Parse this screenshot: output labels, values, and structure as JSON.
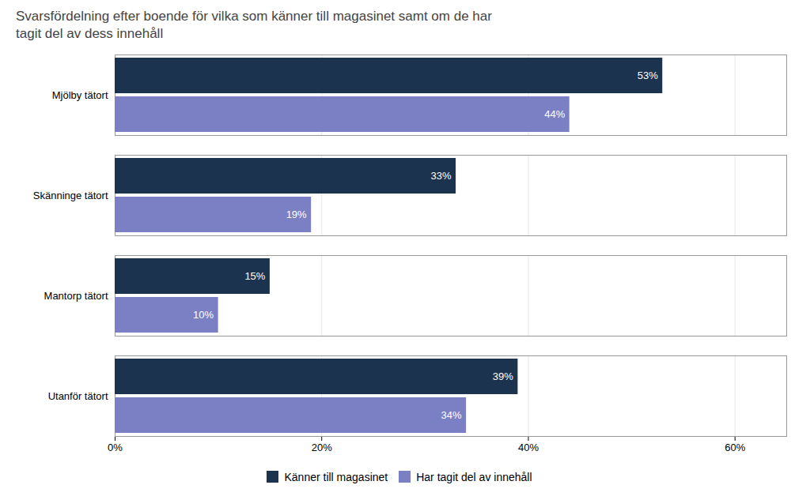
{
  "chart_data": {
    "type": "bar",
    "orientation": "horizontal",
    "title": "Svarsfördelning efter boende för vilka som känner till magasinet samt om de har\ntagit del av dess innehåll",
    "categories": [
      "Utanför tätort",
      "Mantorp tätort",
      "Skänninge tätort",
      "Mjölby tätort"
    ],
    "series": [
      {
        "name": "Känner till magasinet",
        "color": "#1c3350",
        "values": [
          39,
          15,
          33,
          53
        ],
        "value_labels": [
          "39%",
          "15%",
          "33%",
          "53%"
        ]
      },
      {
        "name": "Har tagit del av innehåll",
        "color": "#7b7fc4",
        "values": [
          34,
          10,
          19,
          44
        ],
        "value_labels": [
          "34%",
          "10%",
          "19%",
          "44%"
        ]
      }
    ],
    "xlim": [
      0,
      65
    ],
    "xticks": [
      {
        "value": 0,
        "label": "0%"
      },
      {
        "value": 20,
        "label": "20%"
      },
      {
        "value": 40,
        "label": "40%"
      },
      {
        "value": 60,
        "label": "60%"
      }
    ],
    "grid": true,
    "data_labels": true,
    "legend": "bottom"
  }
}
